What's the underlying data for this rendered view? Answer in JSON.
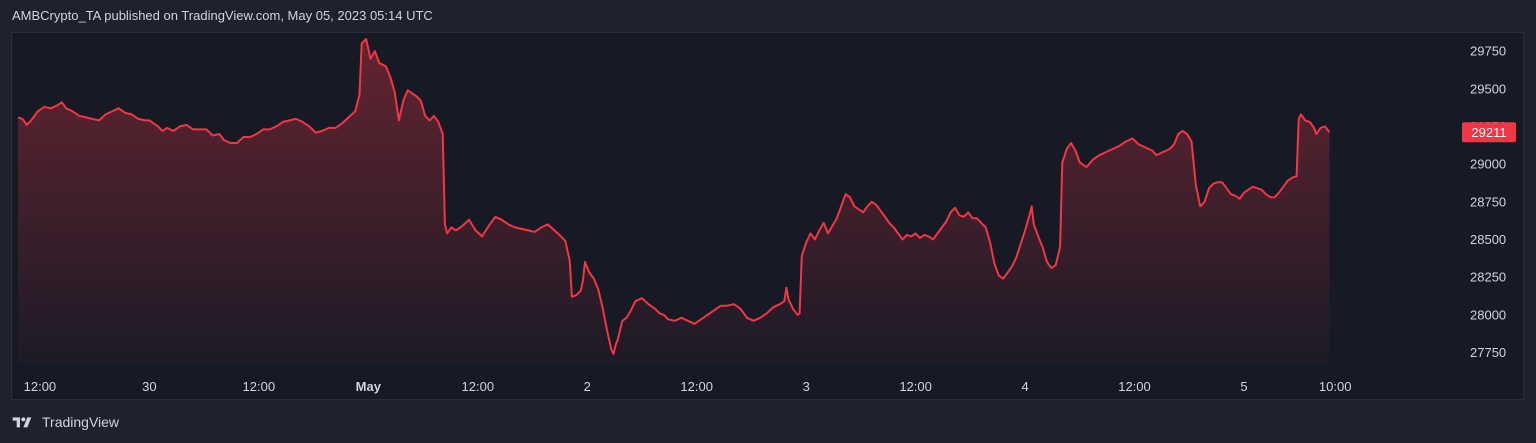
{
  "header": {
    "publisher": "AMBCrypto_TA published on TradingView.com, May 05, 2023 05:14 UTC"
  },
  "footer": {
    "brand": "TradingView",
    "logo_icon": "tradingview-logo-icon"
  },
  "colors": {
    "background": "#161a25",
    "line": "#f23645",
    "text": "#d1d4dc",
    "price_badge": "#f23645"
  },
  "chart_data": {
    "type": "area",
    "title": "",
    "xlabel": "",
    "ylabel": "",
    "ylim": [
      27680,
      29870
    ],
    "y_ticks": [
      "29750",
      "29500",
      "29250",
      "29000",
      "28750",
      "28500",
      "28250",
      "28000",
      "27750"
    ],
    "y_tick_values": [
      29750,
      29500,
      29250,
      29000,
      28750,
      28500,
      28250,
      28000,
      27750
    ],
    "x_ticks": [
      {
        "label": "12:00",
        "t": 0.5,
        "bold": false
      },
      {
        "label": "30",
        "t": 1.0,
        "bold": false
      },
      {
        "label": "12:00",
        "t": 1.5,
        "bold": false
      },
      {
        "label": "May",
        "t": 2.0,
        "bold": true
      },
      {
        "label": "12:00",
        "t": 2.5,
        "bold": false
      },
      {
        "label": "2",
        "t": 3.0,
        "bold": false
      },
      {
        "label": "12:00",
        "t": 3.5,
        "bold": false
      },
      {
        "label": "3",
        "t": 4.0,
        "bold": false
      },
      {
        "label": "12:00",
        "t": 4.5,
        "bold": false
      },
      {
        "label": "4",
        "t": 5.0,
        "bold": false
      },
      {
        "label": "12:00",
        "t": 5.5,
        "bold": false
      },
      {
        "label": "5",
        "t": 6.0,
        "bold": false
      },
      {
        "label": "10:00",
        "t": 6.4167,
        "bold": false
      }
    ],
    "last_price": "29211",
    "series": [
      {
        "values": [
          [
            0.0,
            29310
          ],
          [
            0.02,
            29300
          ],
          [
            0.04,
            29260
          ],
          [
            0.06,
            29290
          ],
          [
            0.09,
            29350
          ],
          [
            0.12,
            29380
          ],
          [
            0.15,
            29370
          ],
          [
            0.18,
            29390
          ],
          [
            0.2,
            29410
          ],
          [
            0.22,
            29370
          ],
          [
            0.25,
            29350
          ],
          [
            0.28,
            29320
          ],
          [
            0.31,
            29310
          ],
          [
            0.34,
            29300
          ],
          [
            0.37,
            29290
          ],
          [
            0.4,
            29330
          ],
          [
            0.43,
            29350
          ],
          [
            0.46,
            29370
          ],
          [
            0.49,
            29340
          ],
          [
            0.52,
            29330
          ],
          [
            0.55,
            29300
          ],
          [
            0.58,
            29290
          ],
          [
            0.6,
            29290
          ],
          [
            0.64,
            29250
          ],
          [
            0.66,
            29220
          ],
          [
            0.68,
            29240
          ],
          [
            0.71,
            29220
          ],
          [
            0.74,
            29250
          ],
          [
            0.77,
            29260
          ],
          [
            0.8,
            29230
          ],
          [
            0.83,
            29230
          ],
          [
            0.86,
            29230
          ],
          [
            0.89,
            29190
          ],
          [
            0.92,
            29200
          ],
          [
            0.94,
            29160
          ],
          [
            0.97,
            29140
          ],
          [
            1.0,
            29140
          ],
          [
            1.03,
            29180
          ],
          [
            1.06,
            29180
          ],
          [
            1.09,
            29200
          ],
          [
            1.12,
            29230
          ],
          [
            1.15,
            29230
          ],
          [
            1.18,
            29250
          ],
          [
            1.21,
            29280
          ],
          [
            1.24,
            29290
          ],
          [
            1.27,
            29300
          ],
          [
            1.3,
            29280
          ],
          [
            1.33,
            29250
          ],
          [
            1.36,
            29210
          ],
          [
            1.39,
            29220
          ],
          [
            1.42,
            29240
          ],
          [
            1.45,
            29240
          ],
          [
            1.48,
            29270
          ],
          [
            1.51,
            29310
          ],
          [
            1.54,
            29350
          ],
          [
            1.56,
            29460
          ],
          [
            1.57,
            29800
          ],
          [
            1.59,
            29830
          ],
          [
            1.61,
            29700
          ],
          [
            1.63,
            29750
          ],
          [
            1.65,
            29670
          ],
          [
            1.68,
            29650
          ],
          [
            1.7,
            29580
          ],
          [
            1.72,
            29480
          ],
          [
            1.74,
            29290
          ],
          [
            1.76,
            29420
          ],
          [
            1.78,
            29490
          ],
          [
            1.8,
            29470
          ],
          [
            1.82,
            29450
          ],
          [
            1.84,
            29420
          ],
          [
            1.86,
            29320
          ],
          [
            1.88,
            29290
          ],
          [
            1.9,
            29320
          ],
          [
            1.92,
            29280
          ],
          [
            1.94,
            29200
          ],
          [
            1.95,
            28600
          ],
          [
            1.96,
            28540
          ],
          [
            1.98,
            28580
          ],
          [
            2.0,
            28560
          ],
          [
            2.03,
            28590
          ],
          [
            2.06,
            28630
          ],
          [
            2.09,
            28560
          ],
          [
            2.12,
            28520
          ],
          [
            2.15,
            28590
          ],
          [
            2.18,
            28650
          ],
          [
            2.21,
            28630
          ],
          [
            2.24,
            28600
          ],
          [
            2.27,
            28580
          ],
          [
            2.3,
            28570
          ],
          [
            2.33,
            28560
          ],
          [
            2.36,
            28550
          ],
          [
            2.39,
            28580
          ],
          [
            2.42,
            28600
          ],
          [
            2.45,
            28560
          ],
          [
            2.48,
            28520
          ],
          [
            2.5,
            28490
          ],
          [
            2.52,
            28360
          ],
          [
            2.53,
            28120
          ],
          [
            2.55,
            28130
          ],
          [
            2.57,
            28160
          ],
          [
            2.58,
            28220
          ],
          [
            2.59,
            28350
          ],
          [
            2.61,
            28280
          ],
          [
            2.63,
            28240
          ],
          [
            2.65,
            28170
          ],
          [
            2.67,
            28050
          ],
          [
            2.69,
            27900
          ],
          [
            2.71,
            27770
          ],
          [
            2.72,
            27740
          ],
          [
            2.73,
            27800
          ],
          [
            2.74,
            27840
          ],
          [
            2.76,
            27960
          ],
          [
            2.78,
            27980
          ],
          [
            2.8,
            28030
          ],
          [
            2.82,
            28090
          ],
          [
            2.85,
            28110
          ],
          [
            2.88,
            28070
          ],
          [
            2.91,
            28040
          ],
          [
            2.93,
            28010
          ],
          [
            2.95,
            28000
          ],
          [
            2.97,
            27970
          ],
          [
            3.0,
            27960
          ],
          [
            3.03,
            27980
          ],
          [
            3.06,
            27960
          ],
          [
            3.09,
            27940
          ],
          [
            3.12,
            27970
          ],
          [
            3.15,
            28000
          ],
          [
            3.18,
            28030
          ],
          [
            3.21,
            28060
          ],
          [
            3.24,
            28060
          ],
          [
            3.27,
            28070
          ],
          [
            3.3,
            28040
          ],
          [
            3.33,
            27980
          ],
          [
            3.36,
            27960
          ],
          [
            3.39,
            27980
          ],
          [
            3.42,
            28010
          ],
          [
            3.45,
            28050
          ],
          [
            3.48,
            28070
          ],
          [
            3.5,
            28090
          ],
          [
            3.51,
            28180
          ],
          [
            3.52,
            28100
          ],
          [
            3.54,
            28040
          ],
          [
            3.56,
            28000
          ],
          [
            3.57,
            28010
          ],
          [
            3.58,
            28390
          ],
          [
            3.6,
            28480
          ],
          [
            3.62,
            28540
          ],
          [
            3.64,
            28500
          ],
          [
            3.66,
            28560
          ],
          [
            3.68,
            28610
          ],
          [
            3.7,
            28540
          ],
          [
            3.72,
            28590
          ],
          [
            3.74,
            28640
          ],
          [
            3.76,
            28720
          ],
          [
            3.78,
            28800
          ],
          [
            3.8,
            28780
          ],
          [
            3.82,
            28720
          ],
          [
            3.84,
            28700
          ],
          [
            3.86,
            28680
          ],
          [
            3.88,
            28720
          ],
          [
            3.9,
            28750
          ],
          [
            3.92,
            28730
          ],
          [
            3.94,
            28690
          ],
          [
            3.96,
            28650
          ],
          [
            3.98,
            28610
          ],
          [
            4.0,
            28580
          ],
          [
            4.02,
            28540
          ],
          [
            4.04,
            28500
          ],
          [
            4.06,
            28530
          ],
          [
            4.08,
            28520
          ],
          [
            4.1,
            28540
          ],
          [
            4.12,
            28510
          ],
          [
            4.14,
            28530
          ],
          [
            4.16,
            28520
          ],
          [
            4.18,
            28500
          ],
          [
            4.2,
            28540
          ],
          [
            4.22,
            28580
          ],
          [
            4.24,
            28620
          ],
          [
            4.26,
            28680
          ],
          [
            4.28,
            28710
          ],
          [
            4.3,
            28660
          ],
          [
            4.32,
            28650
          ],
          [
            4.34,
            28680
          ],
          [
            4.36,
            28640
          ],
          [
            4.38,
            28640
          ],
          [
            4.4,
            28610
          ],
          [
            4.42,
            28580
          ],
          [
            4.44,
            28480
          ],
          [
            4.46,
            28340
          ],
          [
            4.48,
            28260
          ],
          [
            4.5,
            28240
          ],
          [
            4.52,
            28280
          ],
          [
            4.54,
            28320
          ],
          [
            4.56,
            28380
          ],
          [
            4.58,
            28470
          ],
          [
            4.6,
            28560
          ],
          [
            4.62,
            28660
          ],
          [
            4.63,
            28720
          ],
          [
            4.64,
            28600
          ],
          [
            4.66,
            28520
          ],
          [
            4.68,
            28450
          ],
          [
            4.7,
            28350
          ],
          [
            4.72,
            28310
          ],
          [
            4.74,
            28330
          ],
          [
            4.76,
            28450
          ],
          [
            4.77,
            29010
          ],
          [
            4.79,
            29100
          ],
          [
            4.81,
            29140
          ],
          [
            4.83,
            29090
          ],
          [
            4.85,
            29010
          ],
          [
            4.88,
            28980
          ],
          [
            4.91,
            29030
          ],
          [
            4.94,
            29060
          ],
          [
            4.97,
            29080
          ],
          [
            5.0,
            29100
          ],
          [
            5.03,
            29120
          ],
          [
            5.06,
            29150
          ],
          [
            5.09,
            29170
          ],
          [
            5.12,
            29130
          ],
          [
            5.15,
            29110
          ],
          [
            5.18,
            29090
          ],
          [
            5.2,
            29060
          ],
          [
            5.23,
            29080
          ],
          [
            5.26,
            29100
          ],
          [
            5.28,
            29130
          ],
          [
            5.3,
            29200
          ],
          [
            5.32,
            29220
          ],
          [
            5.34,
            29200
          ],
          [
            5.36,
            29150
          ],
          [
            5.38,
            28860
          ],
          [
            5.4,
            28720
          ],
          [
            5.42,
            28750
          ],
          [
            5.44,
            28840
          ],
          [
            5.46,
            28870
          ],
          [
            5.48,
            28880
          ],
          [
            5.5,
            28880
          ],
          [
            5.52,
            28840
          ],
          [
            5.54,
            28800
          ],
          [
            5.56,
            28790
          ],
          [
            5.58,
            28770
          ],
          [
            5.6,
            28810
          ],
          [
            5.62,
            28830
          ],
          [
            5.64,
            28850
          ],
          [
            5.66,
            28840
          ],
          [
            5.68,
            28830
          ],
          [
            5.7,
            28800
          ],
          [
            5.72,
            28780
          ],
          [
            5.74,
            28780
          ],
          [
            5.76,
            28810
          ],
          [
            5.78,
            28850
          ],
          [
            5.8,
            28890
          ],
          [
            5.82,
            28910
          ],
          [
            5.84,
            28920
          ],
          [
            5.85,
            29300
          ],
          [
            5.86,
            29330
          ],
          [
            5.88,
            29290
          ],
          [
            5.9,
            29280
          ],
          [
            5.92,
            29240
          ],
          [
            5.93,
            29200
          ],
          [
            5.95,
            29240
          ],
          [
            5.97,
            29250
          ],
          [
            5.99,
            29211
          ]
        ]
      }
    ],
    "time_offset": 0.4
  }
}
